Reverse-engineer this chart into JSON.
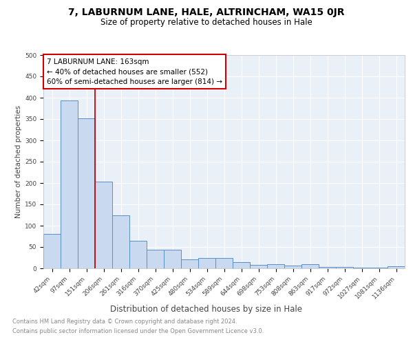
{
  "title1": "7, LABURNUM LANE, HALE, ALTRINCHAM, WA15 0JR",
  "title2": "Size of property relative to detached houses in Hale",
  "xlabel": "Distribution of detached houses by size in Hale",
  "ylabel": "Number of detached properties",
  "categories": [
    "42sqm",
    "97sqm",
    "151sqm",
    "206sqm",
    "261sqm",
    "316sqm",
    "370sqm",
    "425sqm",
    "480sqm",
    "534sqm",
    "589sqm",
    "644sqm",
    "698sqm",
    "753sqm",
    "808sqm",
    "863sqm",
    "917sqm",
    "972sqm",
    "1027sqm",
    "1081sqm",
    "1136sqm"
  ],
  "values": [
    80,
    393,
    351,
    204,
    124,
    65,
    44,
    44,
    21,
    25,
    25,
    15,
    8,
    10,
    7,
    10,
    4,
    3,
    2,
    2,
    5
  ],
  "bar_color": "#c8d9f0",
  "bar_edge_color": "#5a8fc2",
  "background_color": "#eaf0f8",
  "grid_color": "#ffffff",
  "red_line_x": 2.5,
  "annotation_title": "7 LABURNUM LANE: 163sqm",
  "annotation_line1": "← 40% of detached houses are smaller (552)",
  "annotation_line2": "60% of semi-detached houses are larger (814) →",
  "annotation_box_color": "#ffffff",
  "annotation_border_color": "#cc0000",
  "footer1": "Contains HM Land Registry data © Crown copyright and database right 2024.",
  "footer2": "Contains public sector information licensed under the Open Government Licence v3.0.",
  "ylim": [
    0,
    500
  ],
  "yticks": [
    0,
    50,
    100,
    150,
    200,
    250,
    300,
    350,
    400,
    450,
    500
  ],
  "title1_fontsize": 10,
  "title2_fontsize": 8.5,
  "xlabel_fontsize": 8.5,
  "ylabel_fontsize": 7.5,
  "tick_fontsize": 6.5,
  "footer_fontsize": 6,
  "annotation_fontsize": 7.5
}
